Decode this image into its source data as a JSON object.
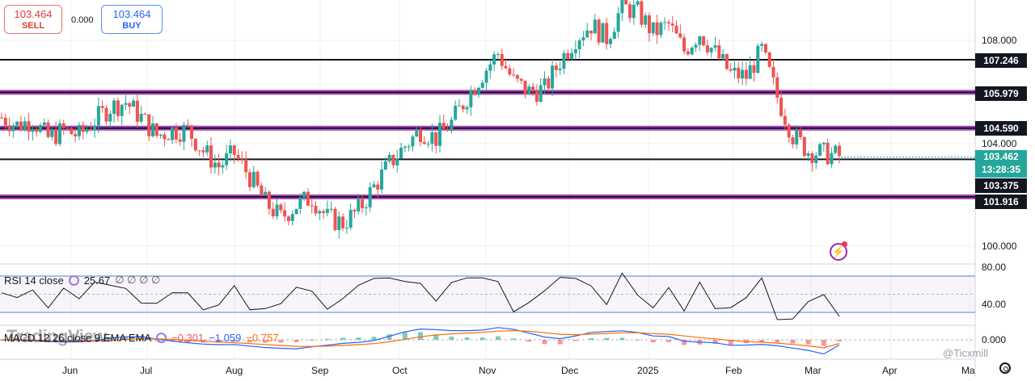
{
  "trade": {
    "sell_price": "103.464",
    "sell_label": "SELL",
    "spread": "0.000",
    "buy_price": "103.464",
    "buy_label": "BUY"
  },
  "price_axis": {
    "labels": [
      "108.000",
      "104.000",
      "100.000"
    ],
    "levels": [
      "107.246",
      "105.979",
      "104.590",
      "103.375",
      "101.916"
    ],
    "current_price": "103.462",
    "countdown": "13:28:35"
  },
  "rsi": {
    "title": "RSI 14 close",
    "value": "25.67",
    "extra": "∅ ∅ ∅ ∅",
    "axis": [
      "80.00",
      "40.00"
    ]
  },
  "macd": {
    "title": "MACD 12 26 close 9 EMA EMA",
    "hist": "−0.301",
    "macd": "−1.059",
    "signal": "−0.757",
    "axis": [
      "0.000"
    ]
  },
  "time_axis": [
    "Jun",
    "Jul",
    "Aug",
    "Sep",
    "Oct",
    "Nov",
    "Dec",
    "2025",
    "Feb",
    "Mar",
    "Apr",
    "Ma"
  ],
  "watermark": "TradingView",
  "attribution": "@Ticxmill",
  "colors": {
    "up": "#26a69a",
    "down": "#ef5350",
    "level_purple": "#9c27b0",
    "rsi_line": "#131722",
    "macd_line": "#2962ff",
    "signal_line": "#ff6d00"
  },
  "chart_data": {
    "type": "candlestick",
    "symbol_hint": "daily OHLC",
    "x": [
      "Jun",
      "Jul",
      "Aug",
      "Sep",
      "Oct",
      "Nov",
      "Dec",
      "2025",
      "Feb",
      "Mar",
      "Apr",
      "Ma"
    ],
    "y_labels": [
      108.0,
      104.0,
      100.0
    ],
    "close_path": [
      105.0,
      104.7,
      104.9,
      104.2,
      104.5,
      104.3,
      104.9,
      105.4,
      105.6,
      105.0,
      104.3,
      104.5,
      104.5,
      103.7,
      103.1,
      103.6,
      102.7,
      101.7,
      101.1,
      101.6,
      101.9,
      101.1,
      100.9,
      101.4,
      102.3,
      103.2,
      103.9,
      104.5,
      104.2,
      104.8,
      105.8,
      106.7,
      107.5,
      106.4,
      106.0,
      106.1,
      107.2,
      108.1,
      108.6,
      108.1,
      109.3,
      109.1,
      108.3,
      108.6,
      107.6,
      108.3,
      107.5,
      106.7,
      106.6,
      107.6,
      105.8,
      104.3,
      103.7,
      103.6,
      103.5
    ],
    "levels": [
      107.246,
      105.979,
      104.59,
      103.375,
      101.916
    ],
    "current": 103.462,
    "rsi_last": 25.67,
    "rsi_bands": [
      70,
      30
    ],
    "macd_last": -1.059,
    "signal_last": -0.757,
    "hist_last": -0.301
  }
}
